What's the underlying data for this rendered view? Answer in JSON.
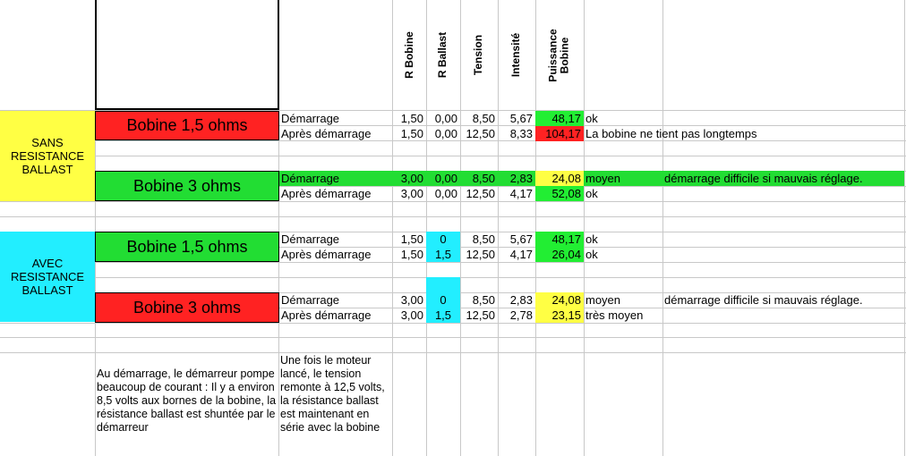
{
  "headers": {
    "r_bobine": "R Bobine",
    "r_ballast": "R Ballast",
    "tension": "Tension",
    "intensite": "Intensité",
    "puissance": "Puissance Bobine"
  },
  "groups": {
    "sans": "SANS RESISTANCE BALLAST",
    "avec": "AVEC RESISTANCE BALLAST"
  },
  "labels": {
    "b1": "Bobine 1,5 ohms",
    "b2": "Bobine 3 ohms",
    "b3": "Bobine 1,5 ohms",
    "b4": "Bobine 3 ohms"
  },
  "rows": [
    {
      "phase": "Démarrage",
      "r_bobine": "1,50",
      "r_ballast": "0,00",
      "tension": "8,50",
      "intensite": "5,67",
      "puissance": "48,17",
      "comment": "ok",
      "note": ""
    },
    {
      "phase": "Après démarrage",
      "r_bobine": "1,50",
      "r_ballast": "0,00",
      "tension": "12,50",
      "intensite": "8,33",
      "puissance": "104,17",
      "comment": "La bobine ne tient pas longtemps",
      "note": ""
    },
    {
      "phase": "Démarrage",
      "r_bobine": "3,00",
      "r_ballast": "0,00",
      "tension": "8,50",
      "intensite": "2,83",
      "puissance": "24,08",
      "comment": "moyen",
      "note": "démarrage difficile si mauvais réglage."
    },
    {
      "phase": "Après démarrage",
      "r_bobine": "3,00",
      "r_ballast": "0,00",
      "tension": "12,50",
      "intensite": "4,17",
      "puissance": "52,08",
      "comment": "ok",
      "note": ""
    },
    {
      "phase": "Démarrage",
      "r_bobine": "1,50",
      "r_ballast": "0",
      "tension": "8,50",
      "intensite": "5,67",
      "puissance": "48,17",
      "comment": "ok",
      "note": ""
    },
    {
      "phase": "Après démarrage",
      "r_bobine": "1,50",
      "r_ballast": "1,5",
      "tension": "12,50",
      "intensite": "4,17",
      "puissance": "26,04",
      "comment": "ok",
      "note": ""
    },
    {
      "phase": "Démarrage",
      "r_bobine": "3,00",
      "r_ballast": "0",
      "tension": "8,50",
      "intensite": "2,83",
      "puissance": "24,08",
      "comment": "moyen",
      "note": "démarrage difficile si mauvais réglage."
    },
    {
      "phase": "Après démarrage",
      "r_bobine": "3,00",
      "r_ballast": "1,5",
      "tension": "12,50",
      "intensite": "2,78",
      "puissance": "23,15",
      "comment": "très moyen",
      "note": ""
    }
  ],
  "notes": {
    "left": "Au démarrage, le démarreur pompe  beaucoup de courant : Il y a environ 8,5 volts aux bornes de la bobine, la résistance ballast est shuntée par le démarreur",
    "right": "Une fois le moteur lancé, le tension remonte à 12,5 volts, la résistance ballast est maintenant en série avec la bobine"
  },
  "colors": {
    "green": "#22dd33",
    "red": "#ff2222",
    "yellow": "#ffff44",
    "cyan": "#22eeff"
  }
}
